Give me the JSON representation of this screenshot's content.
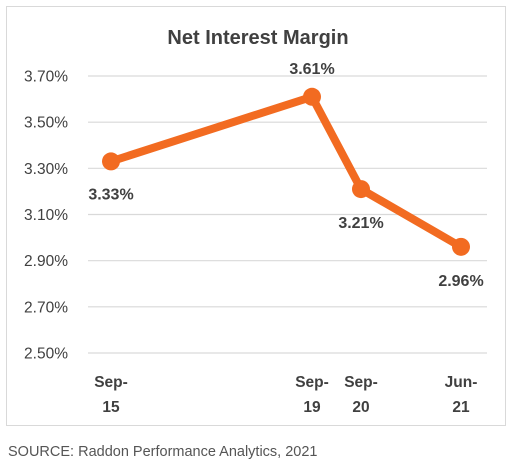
{
  "chart_data": {
    "type": "line",
    "title": "Net Interest Margin",
    "xlabel": "",
    "ylabel": "",
    "x": [
      "Sep-15",
      "Sep-19",
      "Sep-20",
      "Jun-21"
    ],
    "x_ticks": [
      {
        "line1": "Sep-",
        "line2": "15"
      },
      {
        "line1": "Sep-",
        "line2": "19"
      },
      {
        "line1": "Sep-",
        "line2": "20"
      },
      {
        "line1": "Jun-",
        "line2": "21"
      }
    ],
    "series": [
      {
        "values": [
          3.33,
          3.61,
          3.21,
          2.96
        ],
        "labels": [
          "3.33%",
          "3.61%",
          "3.21%",
          "2.96%"
        ],
        "color": "#f26b21"
      }
    ],
    "ylim": [
      2.5,
      3.7
    ],
    "yticks": [
      "3.70%",
      "3.50%",
      "3.30%",
      "3.10%",
      "2.90%",
      "2.70%",
      "2.50%"
    ],
    "ytick_values": [
      3.7,
      3.5,
      3.3,
      3.1,
      2.9,
      2.7,
      2.5
    ],
    "grid": true,
    "legend": "none"
  },
  "source_text": "SOURCE: Raddon Performance Analytics, 2021"
}
